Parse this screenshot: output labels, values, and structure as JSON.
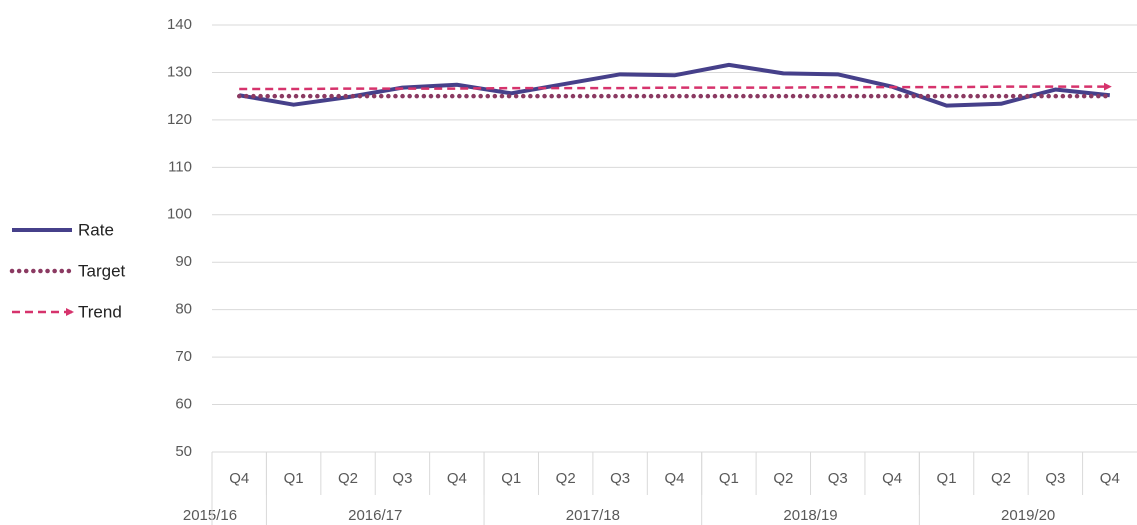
{
  "chart_data": {
    "type": "line",
    "categories": [
      "Q4",
      "Q1",
      "Q2",
      "Q3",
      "Q4",
      "Q1",
      "Q2",
      "Q3",
      "Q4",
      "Q1",
      "Q2",
      "Q3",
      "Q4",
      "Q1",
      "Q2",
      "Q3",
      "Q4"
    ],
    "groups": [
      {
        "label": "2015/16",
        "span": 1
      },
      {
        "label": "2016/17",
        "span": 4
      },
      {
        "label": "2017/18",
        "span": 4
      },
      {
        "label": "2018/19",
        "span": 4
      },
      {
        "label": "2019/20",
        "span": 4
      }
    ],
    "series": [
      {
        "name": "Rate",
        "color": "#46408a",
        "style": "solid",
        "values": [
          125.2,
          123.2,
          124.8,
          126.8,
          127.4,
          125.6,
          127.6,
          129.6,
          129.4,
          131.6,
          129.8,
          129.6,
          127,
          123,
          123.4,
          126.4,
          125.2
        ]
      },
      {
        "name": "Target",
        "color": "#8b3a62",
        "style": "dotted",
        "values": [
          125,
          125,
          125,
          125,
          125,
          125,
          125,
          125,
          125,
          125,
          125,
          125,
          125,
          125,
          125,
          125,
          125
        ]
      },
      {
        "name": "Trend",
        "color": "#d6336c",
        "style": "dashed",
        "values": [
          126.5,
          126.5,
          126.6,
          126.6,
          126.6,
          126.7,
          126.7,
          126.7,
          126.8,
          126.8,
          126.8,
          126.9,
          126.9,
          126.9,
          127,
          127,
          127
        ]
      }
    ],
    "ylim": [
      50,
      140
    ],
    "yticks": [
      50,
      60,
      70,
      80,
      90,
      100,
      110,
      120,
      130,
      140
    ],
    "grid": true,
    "legend": "left"
  }
}
